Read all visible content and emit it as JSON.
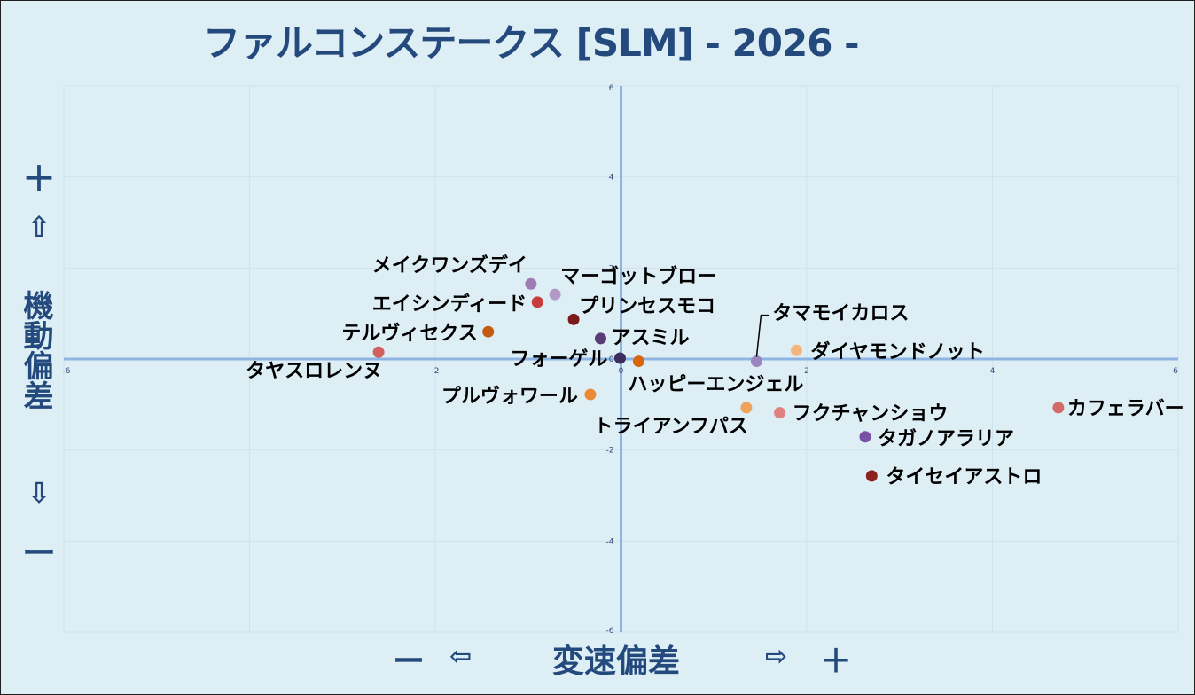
{
  "title": "ファルコンステークス [SLM]  - 2026 -",
  "y_axis_label": {
    "plus_top": "＋",
    "arrow_up": "⇧",
    "text": "機動偏差",
    "arrow_down": "⇩",
    "minus_bottom": "ー"
  },
  "x_axis_label": {
    "minus": "ー",
    "arrow_left": "⇦",
    "text": "変速偏差",
    "arrow_right": "⇨",
    "plus": "＋"
  },
  "colors": {
    "background": "#ddeef5",
    "title": "#24497c",
    "axis": "#8db4e2",
    "grid": "#cfe3ee",
    "tick_label": "#3a4a7a"
  },
  "chart_data": {
    "type": "scatter",
    "title": "ファルコンステークス [SLM]  - 2026 -",
    "xlabel": "変速偏差",
    "ylabel": "機動偏差",
    "xlim": [
      -6,
      6
    ],
    "ylim": [
      -6,
      6
    ],
    "x_ticks": [
      "-6",
      "-2",
      "0",
      "2",
      "4",
      "6"
    ],
    "y_ticks": [
      "6",
      "4",
      "2",
      "0",
      "-2",
      "-4",
      "-6"
    ],
    "grid": true,
    "points": [
      {
        "label": "メイクワンズデイ",
        "x": -0.97,
        "y": 1.65,
        "color": "#a07cb5"
      },
      {
        "label": "マーゴットブロー",
        "x": -0.71,
        "y": 1.42,
        "color": "#b39ac6"
      },
      {
        "label": "エイシンディード",
        "x": -0.9,
        "y": 1.25,
        "color": "#c83c3c"
      },
      {
        "label": "プリンセスモコ",
        "x": -0.51,
        "y": 0.87,
        "color": "#7a1a1a"
      },
      {
        "label": "テルヴィセクス",
        "x": -1.43,
        "y": 0.6,
        "color": "#c55a11"
      },
      {
        "label": "アスミル",
        "x": -0.22,
        "y": 0.45,
        "color": "#5a3c78"
      },
      {
        "label": "タヤスロレンヌ",
        "x": -2.61,
        "y": 0.15,
        "color": "#d26060"
      },
      {
        "label": "フォーゲル",
        "x": -0.01,
        "y": 0.02,
        "color": "#3d2c5e"
      },
      {
        "label": "ハッピーエンジェル",
        "x": 0.19,
        "y": -0.05,
        "color": "#d9660f"
      },
      {
        "label": "タマモイカロス",
        "x": 1.46,
        "y": -0.05,
        "color": "#9b86bf"
      },
      {
        "label": "ダイヤモンドノット",
        "x": 1.89,
        "y": 0.19,
        "color": "#f6b57a"
      },
      {
        "label": "プルヴォワール",
        "x": -0.33,
        "y": -0.78,
        "color": "#ec8a35"
      },
      {
        "label": "トライアンフパス",
        "x": 1.35,
        "y": -1.07,
        "color": "#f0a25a"
      },
      {
        "label": "フクチャンショウ",
        "x": 1.71,
        "y": -1.18,
        "color": "#e08080"
      },
      {
        "label": "カフェラバー",
        "x": 4.71,
        "y": -1.07,
        "color": "#d26a6a"
      },
      {
        "label": "タガノアラリア",
        "x": 2.63,
        "y": -1.71,
        "color": "#7a4fa6"
      },
      {
        "label": "タイセイアストロ",
        "x": 2.7,
        "y": -2.57,
        "color": "#8c2020"
      }
    ]
  }
}
